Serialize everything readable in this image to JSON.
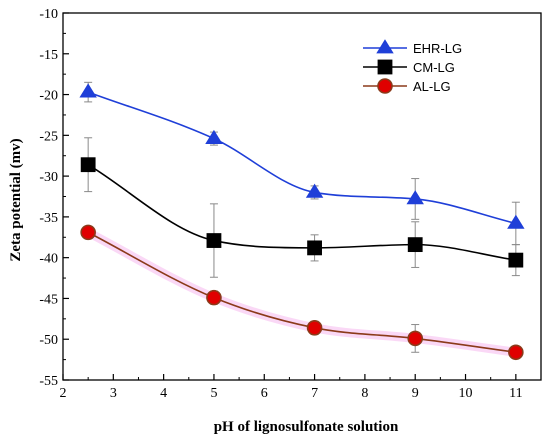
{
  "chart_data": {
    "type": "line",
    "xlabel": "pH of lignosulfonate solution",
    "ylabel": "Zeta potential (mv)",
    "xlim": [
      2,
      11.5
    ],
    "ylim": [
      -55,
      -10
    ],
    "xticks": [
      2,
      3,
      4,
      5,
      6,
      7,
      8,
      9,
      10,
      11
    ],
    "yticks": [
      -10,
      -15,
      -20,
      -25,
      -30,
      -35,
      -40,
      -45,
      -50,
      -55
    ],
    "xtick_labels": [
      "2",
      "3",
      "4",
      "5",
      "6",
      "7",
      "8",
      "9",
      "10",
      "11"
    ],
    "ytick_labels": [
      "-10",
      "-15",
      "-20",
      "-25",
      "-30",
      "-35",
      "-40",
      "-45",
      "-50",
      "-55"
    ],
    "grid": false,
    "legend_position": "top-right",
    "series": [
      {
        "name": "EHR-LG",
        "color": "#1f3fd8",
        "marker": "triangle",
        "x": [
          2.5,
          5,
          7,
          9,
          11
        ],
        "y": [
          -19.7,
          -25.4,
          -32.0,
          -32.8,
          -35.8
        ],
        "yerr": [
          1.2,
          0.8,
          0.8,
          2.5,
          2.6
        ]
      },
      {
        "name": "CM-LG",
        "color": "#000000",
        "marker": "square",
        "x": [
          2.5,
          5,
          7,
          9,
          11
        ],
        "y": [
          -28.6,
          -37.9,
          -38.8,
          -38.4,
          -40.3
        ],
        "yerr": [
          3.3,
          4.5,
          1.6,
          2.8,
          1.9
        ]
      },
      {
        "name": "AL-LG",
        "color": "#e00000",
        "edge_color": "#8b3a1a",
        "marker": "circle",
        "x": [
          2.5,
          5,
          7,
          9,
          11
        ],
        "y": [
          -36.9,
          -44.9,
          -48.6,
          -49.9,
          -51.6
        ],
        "yerr": [
          0.7,
          0.8,
          0.8,
          1.7,
          0.7
        ]
      }
    ]
  }
}
